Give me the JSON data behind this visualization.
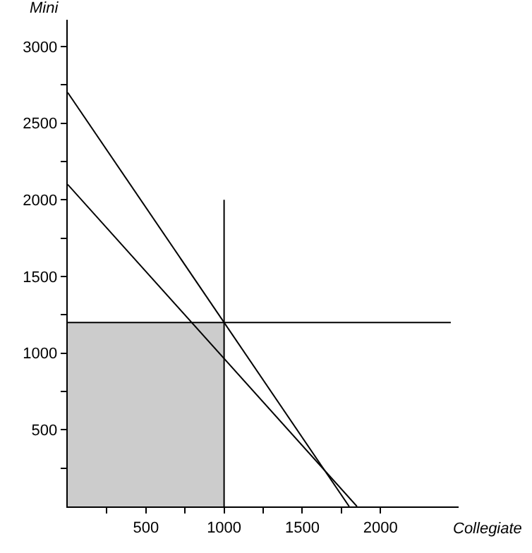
{
  "chart_data": {
    "type": "line",
    "xlabel": "Collegiate",
    "ylabel": "Mini",
    "xlim": [
      0,
      2500
    ],
    "ylim": [
      0,
      3175
    ],
    "xticks": [
      {
        "value": 250,
        "label": null
      },
      500,
      {
        "value": 750,
        "label": null
      },
      1000,
      {
        "value": 1250,
        "label": null
      },
      1500,
      {
        "value": 1750,
        "label": null
      },
      2000
    ],
    "yticks": [
      {
        "value": 250,
        "label": null
      },
      500,
      {
        "value": 750,
        "label": null
      },
      1000,
      {
        "value": 1250,
        "label": null
      },
      1500,
      {
        "value": 1750,
        "label": null
      },
      2000,
      {
        "value": 2250,
        "label": null
      },
      2500,
      {
        "value": 2750,
        "label": null
      },
      3000
    ],
    "grid": false,
    "marker": "none",
    "line_style": "solid",
    "series": [
      {
        "type": "area",
        "color": "#cccccc",
        "x": [
          0,
          1000
        ],
        "values": [
          1200,
          1200
        ]
      },
      {
        "color": "#000000",
        "x": [
          0,
          1800
        ],
        "values": [
          2700,
          0
        ]
      },
      {
        "color": "#000000",
        "x": [
          0,
          1850
        ],
        "values": [
          2100,
          0
        ]
      },
      {
        "color": "#000000",
        "x": [
          1000,
          1000
        ],
        "values": [
          0,
          2000
        ]
      },
      {
        "color": "#000000",
        "x": [
          0,
          2450
        ],
        "values": [
          1200,
          1200
        ]
      }
    ]
  }
}
